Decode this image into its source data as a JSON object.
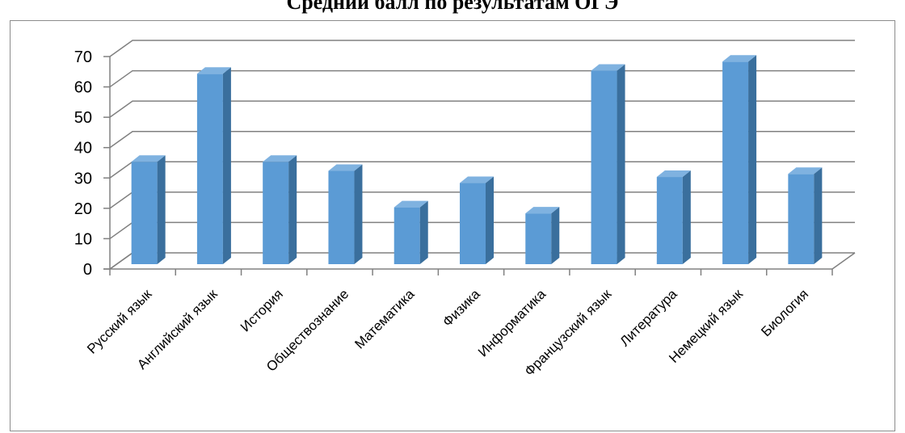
{
  "chart_data": {
    "type": "bar",
    "title": "Средний балл по результатам ОГЭ",
    "categories": [
      "Русский язык",
      "Английский язык",
      "История",
      "Обществознание",
      "Математика",
      "Физика",
      "Информатика",
      "Французский язык",
      "Литература",
      "Немецкий язык",
      "Биология"
    ],
    "values": [
      34,
      63,
      34,
      31,
      19,
      27,
      17,
      64,
      29,
      67,
      30
    ],
    "ylim": [
      0,
      70
    ],
    "yticks": [
      "0",
      "10",
      "20",
      "30",
      "40",
      "50",
      "60",
      "70"
    ],
    "grid": true,
    "legend": "none",
    "colors": {
      "front": "#5b9bd5",
      "side": "#3a6f9d",
      "top": "#7fb2e0",
      "grid": "#808080"
    }
  }
}
